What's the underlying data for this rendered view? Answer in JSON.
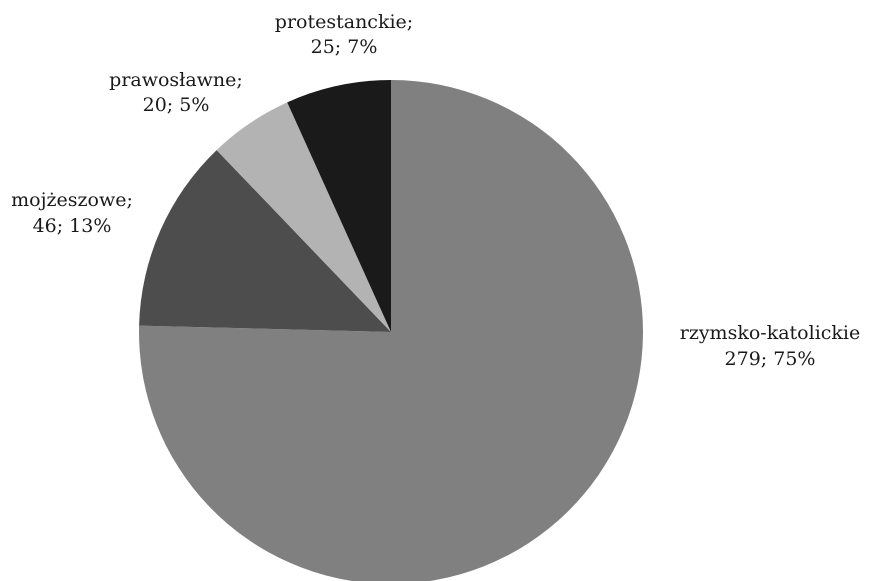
{
  "chart_data": {
    "type": "pie",
    "slices": [
      {
        "name": "rzymsko-katolickie",
        "value": 279,
        "percent": "75%",
        "color": "#808080"
      },
      {
        "name": "mojżeszowe",
        "value": 46,
        "percent": "13%",
        "color": "#4d4d4d"
      },
      {
        "name": "prawosławne",
        "value": 20,
        "percent": "5%",
        "color": "#b3b3b3"
      },
      {
        "name": "protestanckie",
        "value": 25,
        "percent": "7%",
        "color": "#1a1a1a"
      }
    ],
    "start": "top",
    "direction": "clockwise",
    "legend": "none"
  },
  "labels": {
    "rzymsko_katolickie": {
      "name": "rzymsko-katolickie",
      "value": "279; 75%"
    },
    "mojzeszowe": {
      "name": "mojżeszowe;",
      "value": "46; 13%"
    },
    "prawoslawne": {
      "name": "prawosławne;",
      "value": "20; 5%"
    },
    "protestanckie": {
      "name": "protestanckie;",
      "value": "25; 7%"
    }
  }
}
